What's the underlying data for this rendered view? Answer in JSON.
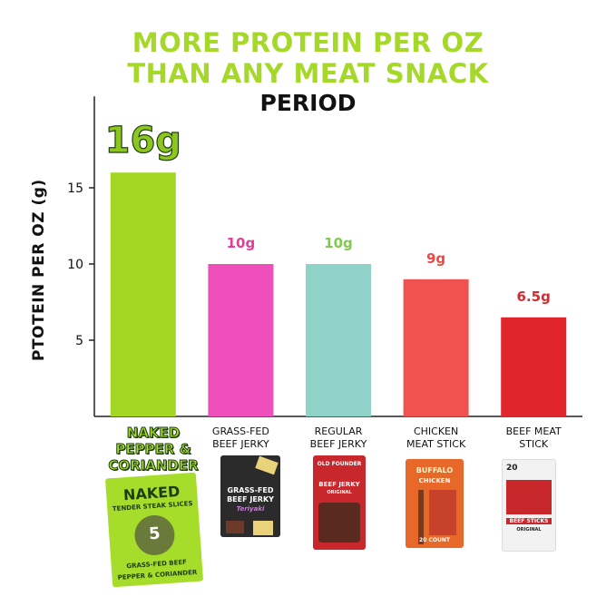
{
  "header": {
    "title_line1": "MORE PROTEIN PER OZ",
    "title_line2": "THAN ANY MEAT SNACK",
    "subtitle": "PERIOD",
    "title_color": "#a6d82a"
  },
  "chart_data": {
    "type": "bar",
    "title": "MORE PROTEIN PER OZ THAN ANY MEAT SNACK",
    "subtitle": "PERIOD",
    "ylabel": "PTOTEIN PER OZ (g)",
    "xlabel": "",
    "ylim": [
      0,
      21
    ],
    "yticks": [
      5,
      10,
      15
    ],
    "grid": false,
    "categories": [
      "NAKED PEPPER & CORIANDER",
      "GRASS-FED BEEF JERKY",
      "REGULAR BEEF JERKY",
      "CHICKEN MEAT STICK",
      "BEEF MEAT STICK"
    ],
    "category_lines": [
      [
        "NAKED",
        "PEPPER &",
        "CORIANDER"
      ],
      [
        "GRASS-FED",
        "BEEF JERKY"
      ],
      [
        "REGULAR",
        "BEEF JERKY"
      ],
      [
        "CHICKEN",
        "MEAT STICK"
      ],
      [
        "BEEF MEAT",
        "STICK"
      ]
    ],
    "values": [
      16,
      10,
      10,
      9,
      6.5
    ],
    "data_labels": [
      "16g",
      "10g",
      "10g",
      "9g",
      "6.5g"
    ],
    "colors": [
      "#a3d723",
      "#ee4fba",
      "#8fd2c7",
      "#f0524f",
      "#e0252c"
    ],
    "label_colors": [
      "#8dc61e",
      "#e23d9b",
      "#7fc94b",
      "#ea4a43",
      "#d42a31"
    ]
  },
  "products": [
    {
      "name": "naked-package",
      "lines": [
        "NAKED",
        "TENDER STEAK SLICES",
        "5",
        "GRASS-FED BEEF",
        "PEPPER & CORIANDER"
      ],
      "color": "#a6dd2a"
    },
    {
      "name": "grass-fed-jerky-package",
      "lines": [
        "GRASS-FED",
        "BEEF JERKY",
        "Teriyaki"
      ],
      "color": "#2b2b2b"
    },
    {
      "name": "regular-jerky-package",
      "lines": [
        "OLD FOUNDER",
        "BEEF JERKY",
        "ORIGINAL"
      ],
      "color": "#c8272c"
    },
    {
      "name": "chicken-stick-package",
      "lines": [
        "BUFFALO",
        "CHICKEN",
        "20 COUNT"
      ],
      "color": "#e8682a"
    },
    {
      "name": "beef-stick-package",
      "lines": [
        "20",
        "BEEF STICKS",
        "ORIGINAL"
      ],
      "color": "#f2f2f2"
    }
  ]
}
